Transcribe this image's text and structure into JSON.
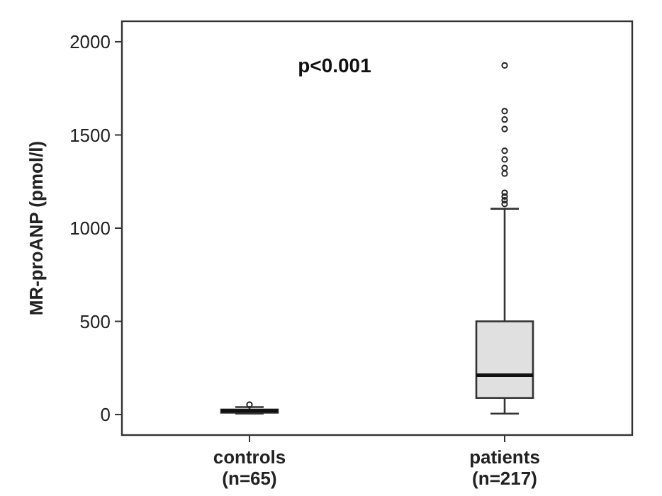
{
  "chart_data": {
    "type": "box",
    "ylabel": "MR-proANP (pmol/l)",
    "categories": [
      "controls (n=65)",
      "patients (n=217)"
    ],
    "boxes": [
      {
        "low": 5,
        "q1": 10,
        "median": 20,
        "q3": 27,
        "high": 40,
        "outliers": [
          53
        ]
      },
      {
        "low": 5,
        "q1": 89,
        "median": 211,
        "q3": 500,
        "high": 1104,
        "outliers": [
          1130,
          1150,
          1170,
          1190,
          1293,
          1323,
          1369,
          1415,
          1532,
          1583,
          1628,
          1873
        ]
      }
    ],
    "color": "#e0e0e0",
    "ylim": [
      -110,
      2110
    ],
    "yticks": [
      0,
      500,
      1000,
      1500,
      2000
    ],
    "grid": false,
    "annotations": [
      "p<0.001"
    ]
  }
}
